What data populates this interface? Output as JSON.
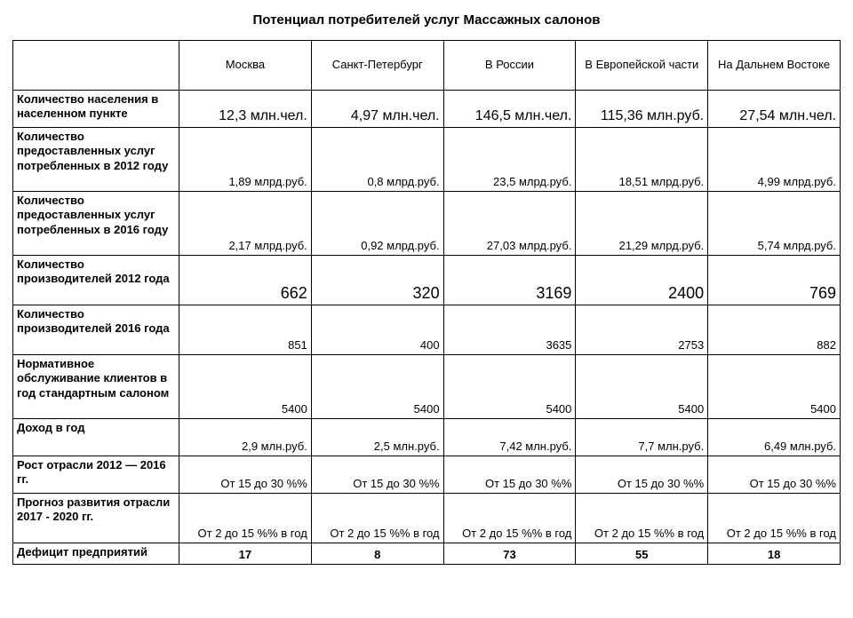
{
  "title": "Потенциал потребителей услуг Массажных салонов",
  "columns": {
    "c0": "Москва",
    "c1": "Санкт-Петербург",
    "c2": "В России",
    "c3": "В Европейской части",
    "c4": "На Дальнем Востоке"
  },
  "rows": {
    "r0": {
      "label": "Количество населения в населенном пункте",
      "v": [
        "12,3 млн.чел.",
        "4,97 млн.чел.",
        "146,5 млн.чел.",
        "115,36 млн.руб.",
        "27,54 млн.чел."
      ]
    },
    "r1": {
      "label": "Количество предоставленных услуг потребленных в 2012 году",
      "v": [
        "1,89 млрд.руб.",
        "0,8 млрд.руб.",
        "23,5 млрд.руб.",
        "18,51 млрд.руб.",
        "4,99 млрд.руб."
      ]
    },
    "r2": {
      "label": "Количество предоставленных услуг потребленных в 2016 году",
      "v": [
        "2,17 млрд.руб.",
        "0,92 млрд.руб.",
        "27,03 млрд.руб.",
        "21,29 млрд.руб.",
        "5,74 млрд.руб."
      ]
    },
    "r3": {
      "label": "Количество производителей 2012 года",
      "v": [
        "662",
        "320",
        "3169",
        "2400",
        "769"
      ]
    },
    "r4": {
      "label": "Количество производителей 2016 года",
      "v": [
        "851",
        "400",
        "3635",
        "2753",
        "882"
      ]
    },
    "r5": {
      "label": "Нормативное обслуживание клиентов в год стандартным салоном",
      "v": [
        "5400",
        "5400",
        "5400",
        "5400",
        "5400"
      ]
    },
    "r6": {
      "label": "Доход в год",
      "v": [
        "2,9 млн.руб.",
        "2,5 млн.руб.",
        "7,42 млн.руб.",
        "7,7 млн.руб.",
        "6,49 млн.руб."
      ]
    },
    "r7": {
      "label": "Рост отрасли 2012 — 2016 гг.",
      "v": [
        "От 15 до 30 %%",
        "От 15 до 30 %%",
        "От 15 до 30 %%",
        "От 15 до 30 %%",
        "От 15 до 30 %%"
      ]
    },
    "r8": {
      "label": "Прогноз развития отрасли 2017 - 2020 гг.",
      "v": [
        "От 2 до 15 %% в год",
        "От 2 до 15 %% в год",
        "От 2 до 15 %% в год",
        "От 2 до 15 %% в год",
        "От 2 до 15 %% в год"
      ]
    },
    "r9": {
      "label": "Дефицит предприятий",
      "v": [
        "17",
        "8",
        "73",
        "55",
        "18"
      ]
    }
  }
}
